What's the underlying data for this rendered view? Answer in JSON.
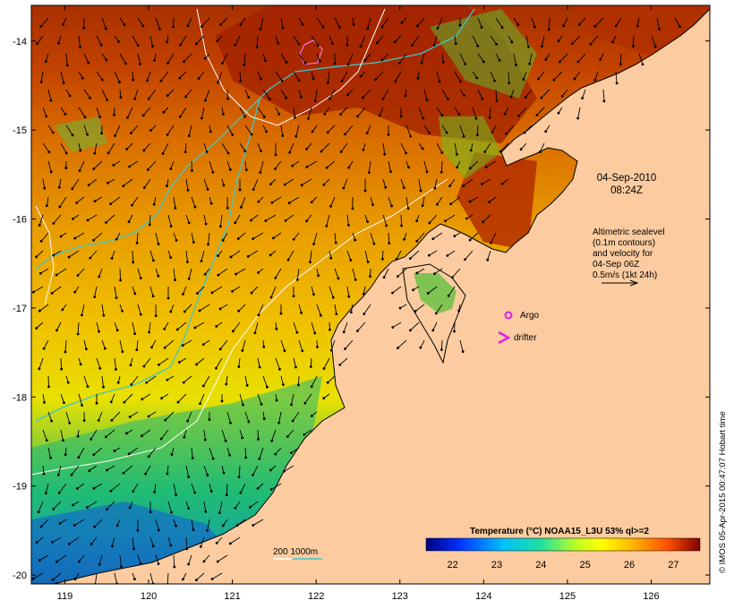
{
  "map": {
    "date_line1": "04-Sep-2010",
    "date_line2": "08:24Z",
    "altimetry_note": [
      "Altimetric sealevel",
      "(0.1m contours)",
      "and velocity for",
      "04-Sep 06Z",
      "0.5m/s (1kt 24h)"
    ],
    "argo_label": "Argo",
    "drifter_label": "drifter",
    "depth_label": "200  1000m",
    "colorbar_title": "Temperature (°C) NOAA15_L3U 53% ql>=2",
    "colorbar_ticks": [
      "22",
      "23",
      "24",
      "25",
      "26",
      "27"
    ],
    "colorbar_range": [
      21.4,
      27.6
    ],
    "credit": "© IMOS 05-Apr-2015 00:47:07 Hobart time",
    "lon_ticks": [
      "119",
      "120",
      "121",
      "122",
      "123",
      "124",
      "125",
      "126"
    ],
    "lat_ticks": [
      "-14",
      "-15",
      "-16",
      "-17",
      "-18",
      "-19",
      "-20"
    ],
    "lon_range": [
      118.6,
      126.7
    ],
    "lat_range": [
      -20.1,
      -13.6
    ],
    "colors": {
      "land": "#fccca0",
      "contour_1000m": "#40c8c8",
      "sealevel_contour": "#ffffff",
      "markers": "#e020e0"
    }
  }
}
